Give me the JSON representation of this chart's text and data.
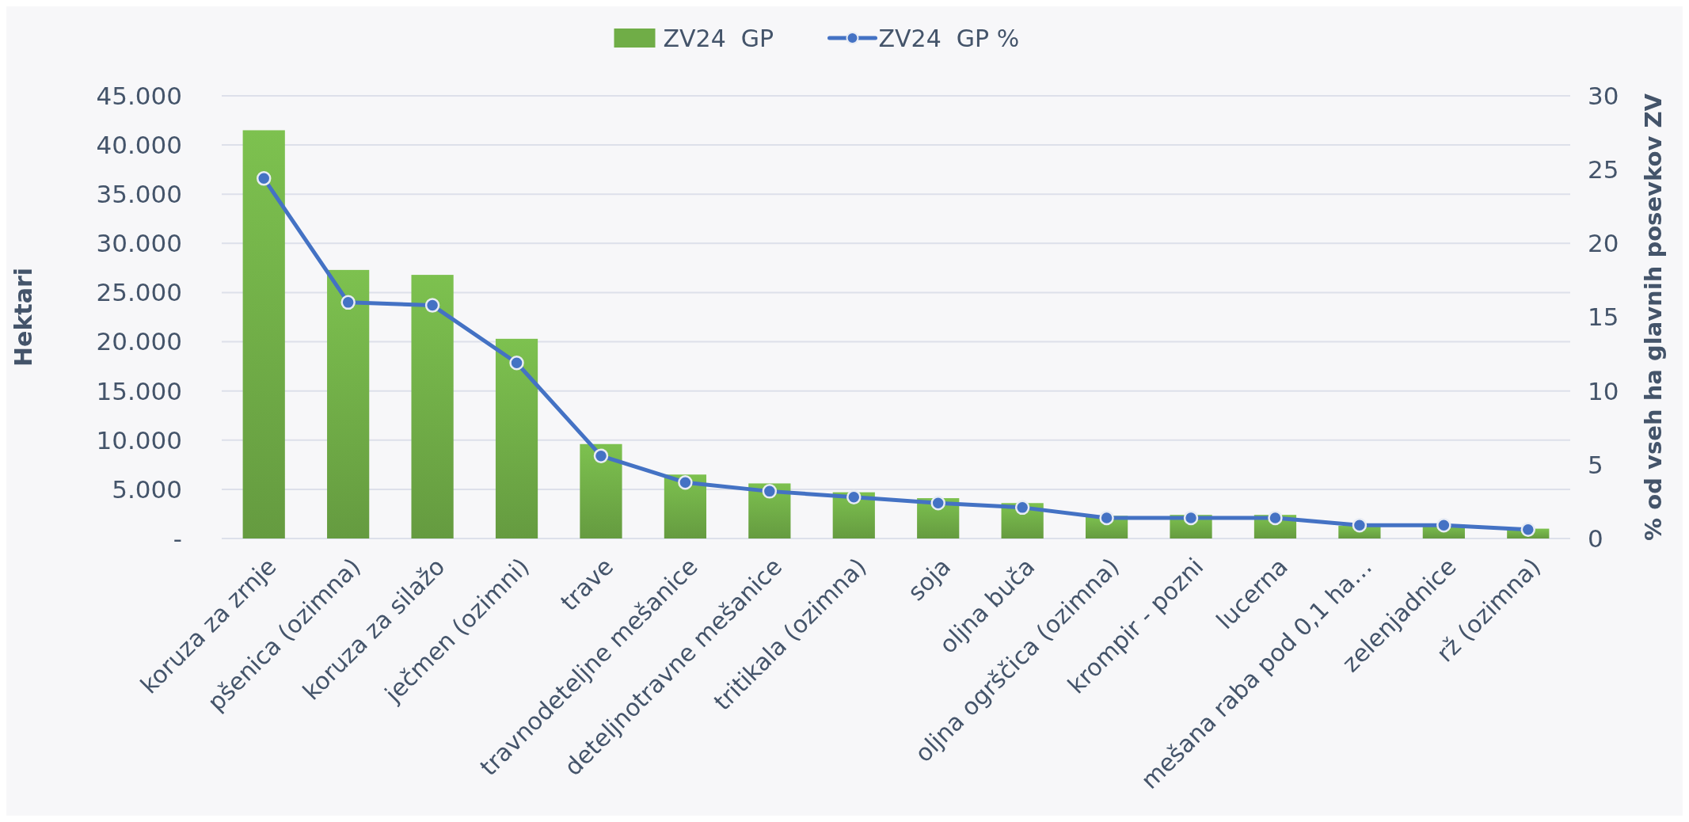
{
  "chart_data": {
    "type": "bar",
    "ylabel": "Hektari",
    "y2label": "% od vseh ha glavnih posevkov ZV",
    "categories": [
      "koruza za zrnje",
      "pšenica (ozimna)",
      "koruza za silažo",
      "ječmen (ozimni)",
      "trave",
      "travnodeteljne mešanice",
      "deteljnotravne mešanice",
      "tritikala (ozimna)",
      "soja",
      "oljna buča",
      "oljna ogrščica (ozimna)",
      "krompir - pozni",
      "lucerna",
      "mešana raba pod 0,1 ha…",
      "zelenjadnice",
      "rž (ozimna)"
    ],
    "series": [
      {
        "name": "ZV24  GP",
        "color": "#70ad47",
        "values": [
          41500,
          27300,
          26800,
          20300,
          9600,
          6500,
          5600,
          4700,
          4100,
          3600,
          2300,
          2400,
          2400,
          1300,
          1400,
          1000
        ]
      },
      {
        "name": "ZV24  GP %",
        "type": "line",
        "axis": "y2",
        "color": "#4472c4",
        "marker": "circle",
        "line_style": "solid",
        "values": [
          24.4,
          16.0,
          15.8,
          11.9,
          5.6,
          3.8,
          3.2,
          2.8,
          2.4,
          2.1,
          1.4,
          1.4,
          1.4,
          0.9,
          0.9,
          0.6
        ]
      }
    ],
    "ylim": [
      0,
      45000
    ],
    "yticks": [
      {
        "value": 0,
        "label": "-"
      },
      {
        "value": 5000,
        "label": "5.000"
      },
      {
        "value": 10000,
        "label": "10.000"
      },
      {
        "value": 15000,
        "label": "15.000"
      },
      {
        "value": 20000,
        "label": "20.000"
      },
      {
        "value": 25000,
        "label": "25.000"
      },
      {
        "value": 30000,
        "label": "30.000"
      },
      {
        "value": 35000,
        "label": "35.000"
      },
      {
        "value": 40000,
        "label": "40.000"
      },
      {
        "value": 45000,
        "label": "45.000"
      }
    ],
    "y2lim": [
      0,
      30
    ],
    "y2ticks": [
      0,
      5,
      10,
      15,
      20,
      25,
      30
    ],
    "grid": "y",
    "legend": "top"
  }
}
